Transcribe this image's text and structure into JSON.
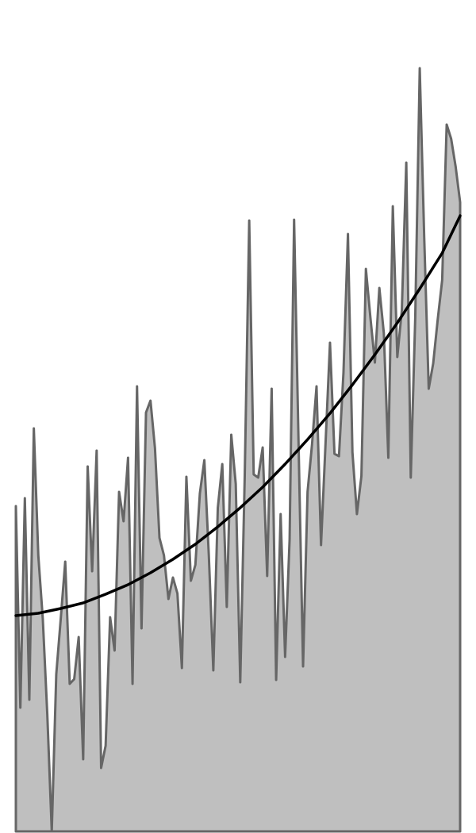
{
  "chart_data": {
    "type": "area",
    "xlim": [
      0,
      99
    ],
    "ylim": [
      0,
      100
    ],
    "series": [
      {
        "color": "#666666",
        "fill": "#bfbfbf",
        "x": [
          0,
          1,
          2,
          3,
          4,
          5,
          6,
          7,
          8,
          9,
          10,
          11,
          12,
          13,
          14,
          15,
          16,
          17,
          18,
          19,
          20,
          21,
          22,
          23,
          24,
          25,
          26,
          27,
          28,
          29,
          30,
          31,
          32,
          33,
          34,
          35,
          36,
          37,
          38,
          39,
          40,
          41,
          42,
          43,
          44,
          45,
          46,
          47,
          48,
          49,
          50,
          51,
          52,
          53,
          54,
          55,
          56,
          57,
          58,
          59,
          60,
          61,
          62,
          63,
          64,
          65,
          66,
          67,
          68,
          69,
          70,
          71,
          72,
          73,
          74,
          75,
          76,
          77,
          78,
          79,
          80,
          81,
          82,
          83,
          84,
          85,
          86,
          87,
          88,
          89,
          90,
          91,
          92,
          93,
          94,
          95,
          96,
          97,
          98,
          99
        ],
        "values": [
          41,
          15.6,
          42,
          16.6,
          50.8,
          34.8,
          26.8,
          14.8,
          0,
          19.8,
          26.8,
          34,
          18.6,
          19.2,
          24.5,
          9.1,
          46,
          32.8,
          48,
          8,
          10.8,
          27,
          22.8,
          42.8,
          39.1,
          47.1,
          18.6,
          56.1,
          25.6,
          52.8,
          54.3,
          48.3,
          37,
          34.8,
          29.3,
          32,
          30,
          20.6,
          44.7,
          31.6,
          33.6,
          42.6,
          46.8,
          34.8,
          20.3,
          40.8,
          46.3,
          28.3,
          50,
          43.8,
          18.8,
          44.8,
          77,
          45,
          44.6,
          48.4,
          32.2,
          55.8,
          19.1,
          40,
          22,
          36.8,
          77.1,
          48.8,
          20.8,
          42.8,
          48.8,
          56.1,
          36.1,
          48.8,
          61.6,
          47.6,
          47.3,
          57.8,
          75.3,
          47.8,
          40,
          44.8,
          70.9,
          64.8,
          59.1,
          68.5,
          62.8,
          47.1,
          78.8,
          59.8,
          65.6,
          84.3,
          44.6,
          64.8,
          96.2,
          74.8,
          55.8,
          59,
          64.5,
          69.5,
          89.1,
          87.3,
          83.8,
          79.3
        ]
      },
      {
        "color": "#000000",
        "x": [
          0,
          5,
          10,
          15,
          20,
          25,
          30,
          35,
          40,
          45,
          50,
          55,
          60,
          65,
          70,
          75,
          80,
          85,
          90,
          95,
          99
        ],
        "values": [
          27.2,
          27.5,
          28.1,
          28.8,
          29.9,
          31.1,
          32.6,
          34.3,
          36.2,
          38.4,
          40.8,
          43.4,
          46.3,
          49.4,
          52.7,
          56.3,
          60.1,
          64.1,
          68.4,
          72.9,
          77.6
        ]
      }
    ]
  }
}
